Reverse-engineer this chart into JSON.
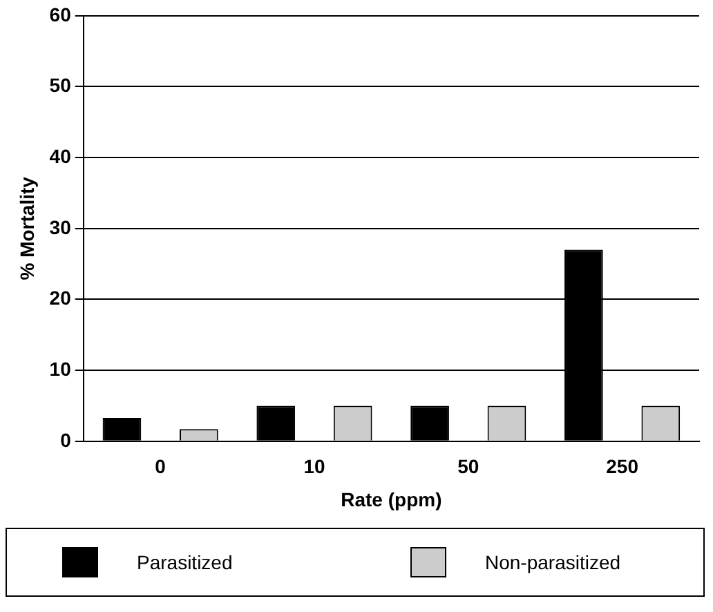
{
  "chart_data": {
    "type": "bar",
    "xlabel": "Rate (ppm)",
    "ylabel": "% Mortality",
    "categories": [
      "0",
      "10",
      "50",
      "250"
    ],
    "series": [
      {
        "name": "Parasitized",
        "color": "#000000",
        "values": [
          3.3,
          5,
          5,
          27
        ]
      },
      {
        "name": "Non-parasitized",
        "color": "#cccccc",
        "values": [
          1.7,
          5,
          5,
          5
        ]
      }
    ],
    "ylim": [
      0,
      60
    ],
    "yticks": [
      0,
      10,
      20,
      30,
      40,
      50,
      60
    ],
    "grid": "y",
    "legend": "bottom"
  }
}
